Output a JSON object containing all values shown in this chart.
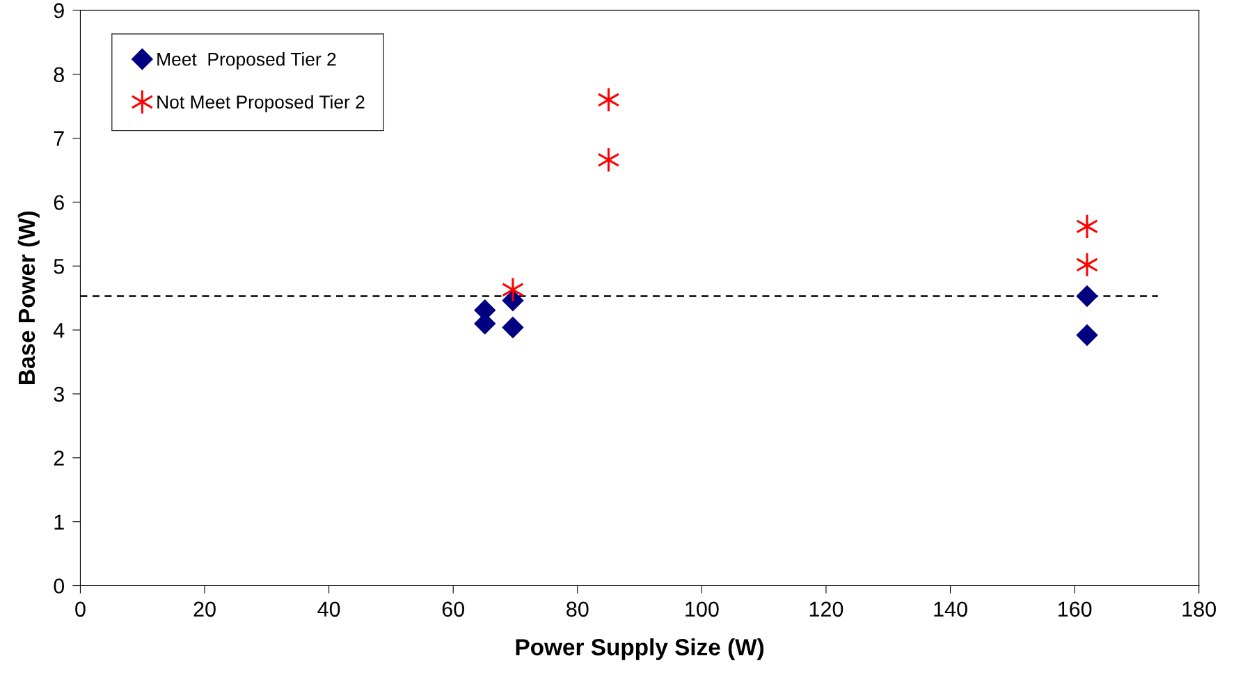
{
  "chart_data": {
    "type": "scatter",
    "xlabel": "Power Supply Size (W)",
    "ylabel": "Base Power (W)",
    "xlim": [
      0,
      180
    ],
    "xticks": [
      0,
      20,
      40,
      60,
      80,
      100,
      120,
      140,
      160,
      180
    ],
    "ylim": [
      0,
      9
    ],
    "yticks": [
      0,
      1,
      2,
      3,
      4,
      5,
      6,
      7,
      8,
      9
    ],
    "grid": false,
    "legend": "top left",
    "series": [
      {
        "name": "Meet  Proposed Tier 2",
        "color": "#000080",
        "marker": "diamond",
        "x": [
          65.1,
          65.1,
          69.6,
          69.6,
          162,
          162
        ],
        "values": [
          4.31,
          4.1,
          4.46,
          4.04,
          4.53,
          3.92
        ]
      },
      {
        "name": "Not Meet Proposed Tier 2",
        "color": "#ff0000",
        "marker": "cross",
        "x": [
          69.6,
          85,
          85,
          162,
          162
        ],
        "values": [
          4.63,
          7.6,
          6.66,
          5.62,
          5.02
        ]
      },
      {
        "type": "line",
        "color": "#000000",
        "line_style": "dashed",
        "marker": "none",
        "x": [
          0,
          173.4
        ],
        "values": [
          4.53,
          4.53
        ]
      }
    ]
  }
}
